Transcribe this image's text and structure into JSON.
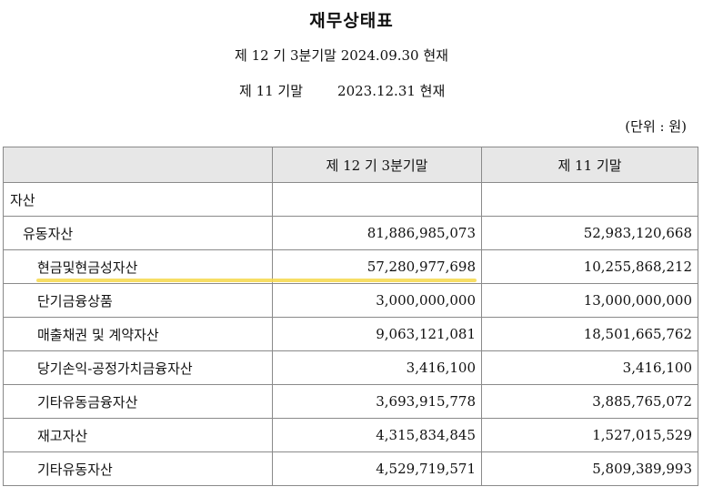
{
  "document": {
    "title": "재무상태표",
    "period_current": {
      "label": "제 12 기 3분기말",
      "date": "2024.09.30 현재"
    },
    "period_prior": {
      "label": "제 11 기말",
      "date": "2023.12.31 현재"
    },
    "unit": "(단위 : 원)"
  },
  "table": {
    "headers": [
      "",
      "제 12 기 3분기말",
      "제 11 기말"
    ],
    "rows": [
      {
        "label": "자산",
        "current": "",
        "prior": "",
        "level": 0
      },
      {
        "label": "유동자산",
        "current": "81,886,985,073",
        "prior": "52,983,120,668",
        "level": 1
      },
      {
        "label": "현금및현금성자산",
        "current": "57,280,977,698",
        "prior": "10,255,868,212",
        "level": 2,
        "highlighted": true
      },
      {
        "label": "단기금융상품",
        "current": "3,000,000,000",
        "prior": "13,000,000,000",
        "level": 2
      },
      {
        "label": "매출채권 및 계약자산",
        "current": "9,063,121,081",
        "prior": "18,501,665,762",
        "level": 2
      },
      {
        "label": "당기손익-공정가치금융자산",
        "current": "3,416,100",
        "prior": "3,416,100",
        "level": 2
      },
      {
        "label": "기타유동금융자산",
        "current": "3,693,915,778",
        "prior": "3,885,765,072",
        "level": 2
      },
      {
        "label": "재고자산",
        "current": "4,315,834,845",
        "prior": "1,527,015,529",
        "level": 2
      },
      {
        "label": "기타유동자산",
        "current": "4,529,719,571",
        "prior": "5,809,389,993",
        "level": 2
      }
    ]
  },
  "colors": {
    "header_bg": "#e7e7e7",
    "border": "#8a8a8a",
    "highlight": "#f6d84a"
  }
}
